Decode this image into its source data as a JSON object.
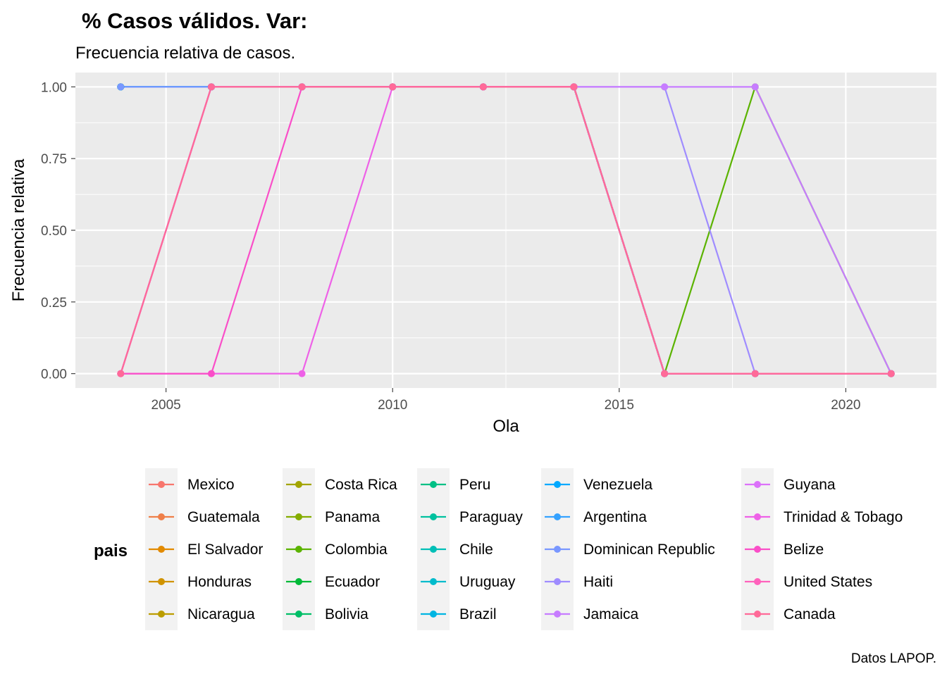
{
  "chart_data": {
    "type": "line",
    "title": "% Casos válidos. Var:",
    "subtitle": "Frecuencia relativa de casos.",
    "xlabel": "Ola",
    "ylabel": "Frecuencia relativa",
    "caption": "Datos LAPOP.",
    "legend_title": "pais",
    "legend_position": "bottom",
    "grid": true,
    "xlim": [
      2003,
      2022
    ],
    "ylim": [
      -0.05,
      1.05
    ],
    "x_ticks": [
      2005,
      2010,
      2015,
      2020
    ],
    "x_tick_labels": [
      "2005",
      "2010",
      "2015",
      "2020"
    ],
    "y_ticks": [
      0,
      0.25,
      0.5,
      0.75,
      1
    ],
    "y_tick_labels": [
      "0.00",
      "0.25",
      "0.50",
      "0.75",
      "1.00"
    ],
    "x": [
      2004,
      2006,
      2008,
      2010,
      2012,
      2014,
      2016,
      2018,
      2021
    ],
    "series": [
      {
        "name": "Mexico",
        "color": "#F8766D",
        "values": [
          1,
          1,
          1,
          1,
          1,
          1,
          0,
          0,
          0
        ]
      },
      {
        "name": "Guatemala",
        "color": "#EF7F49",
        "values": [
          1,
          1,
          1,
          1,
          1,
          1,
          0,
          0,
          0
        ]
      },
      {
        "name": "El Salvador",
        "color": "#E28A00",
        "values": [
          1,
          1,
          1,
          1,
          1,
          1,
          0,
          0,
          0
        ]
      },
      {
        "name": "Honduras",
        "color": "#D09300",
        "values": [
          1,
          1,
          1,
          1,
          1,
          1,
          0,
          0,
          0
        ]
      },
      {
        "name": "Nicaragua",
        "color": "#BB9D00",
        "values": [
          1,
          1,
          1,
          1,
          1,
          1,
          0,
          0,
          0
        ]
      },
      {
        "name": "Costa Rica",
        "color": "#A3A500",
        "values": [
          1,
          1,
          1,
          1,
          1,
          1,
          0,
          0,
          0
        ]
      },
      {
        "name": "Panama",
        "color": "#85AD00",
        "values": [
          1,
          1,
          1,
          1,
          1,
          1,
          0,
          0,
          0
        ]
      },
      {
        "name": "Colombia",
        "color": "#5BB300",
        "values": [
          1,
          1,
          1,
          1,
          1,
          1,
          0,
          1,
          0
        ]
      },
      {
        "name": "Ecuador",
        "color": "#00BA38",
        "values": [
          1,
          1,
          1,
          1,
          1,
          1,
          0,
          0,
          0
        ]
      },
      {
        "name": "Bolivia",
        "color": "#00BE67",
        "values": [
          1,
          1,
          1,
          1,
          1,
          1,
          0,
          0,
          0
        ]
      },
      {
        "name": "Peru",
        "color": "#00C085",
        "values": [
          1,
          1,
          1,
          1,
          1,
          1,
          0,
          0,
          0
        ]
      },
      {
        "name": "Paraguay",
        "color": "#00C19F",
        "values": [
          1,
          1,
          1,
          1,
          1,
          1,
          0,
          0,
          0
        ]
      },
      {
        "name": "Chile",
        "color": "#00BFB7",
        "values": [
          1,
          1,
          1,
          1,
          1,
          1,
          0,
          0,
          0
        ]
      },
      {
        "name": "Uruguay",
        "color": "#00BBCC",
        "values": [
          1,
          1,
          1,
          1,
          1,
          1,
          0,
          0,
          0
        ]
      },
      {
        "name": "Brazil",
        "color": "#00B5E2",
        "values": [
          1,
          1,
          1,
          1,
          1,
          1,
          0,
          0,
          0
        ]
      },
      {
        "name": "Venezuela",
        "color": "#00A9FF",
        "values": [
          1,
          1,
          1,
          1,
          1,
          1,
          0,
          0,
          0
        ]
      },
      {
        "name": "Argentina",
        "color": "#35A2FF",
        "values": [
          1,
          1,
          1,
          1,
          1,
          1,
          0,
          0,
          0
        ]
      },
      {
        "name": "Dominican Republic",
        "color": "#7997FF",
        "values": [
          1,
          1,
          1,
          1,
          1,
          1,
          0,
          0,
          0
        ]
      },
      {
        "name": "Haiti",
        "color": "#9F8CFF",
        "values": [
          0,
          1,
          1,
          1,
          1,
          1,
          1,
          0,
          0
        ]
      },
      {
        "name": "Jamaica",
        "color": "#C77CFF",
        "values": [
          0,
          1,
          1,
          1,
          1,
          1,
          1,
          1,
          0
        ]
      },
      {
        "name": "Guyana",
        "color": "#DC71FA",
        "values": [
          0,
          1,
          1,
          1,
          1,
          1,
          0,
          0,
          0
        ]
      },
      {
        "name": "Trinidad & Tobago",
        "color": "#EE61E7",
        "values": [
          0,
          0,
          0,
          1,
          1,
          1,
          0,
          0,
          0
        ]
      },
      {
        "name": "Belize",
        "color": "#FA4EC8",
        "values": [
          0,
          0,
          1,
          1,
          1,
          1,
          0,
          0,
          0
        ]
      },
      {
        "name": "United States",
        "color": "#FF62BC",
        "values": [
          0,
          1,
          1,
          1,
          1,
          1,
          0,
          0,
          0
        ]
      },
      {
        "name": "Canada",
        "color": "#FF6A98",
        "values": [
          0,
          1,
          1,
          1,
          1,
          1,
          0,
          0,
          0
        ]
      }
    ]
  }
}
